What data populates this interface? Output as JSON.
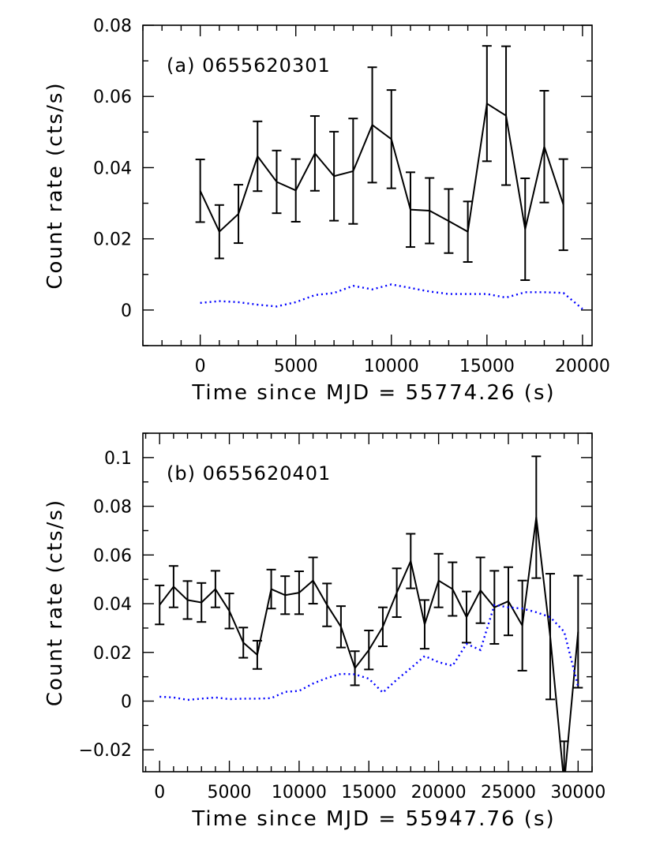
{
  "chart_data": [
    {
      "type": "line",
      "panel_label": "(a) 0655620301",
      "xlabel": "Time since MJD = 55774.26 (s)",
      "ylabel": "Count rate (cts/s)",
      "xlim": [
        -3000,
        20500
      ],
      "ylim": [
        -0.01,
        0.08
      ],
      "xticks": [
        0,
        5000,
        10000,
        15000,
        20000
      ],
      "xtick_labels": [
        "0",
        "5000",
        "10000",
        "15000",
        "20000"
      ],
      "x_minor_step": 1000,
      "yticks": [
        0,
        0.02,
        0.04,
        0.06,
        0.08
      ],
      "ytick_labels": [
        "0",
        "0.02",
        "0.04",
        "0.06",
        "0.08"
      ],
      "y_minor_step": 0.01,
      "series": [
        {
          "style": "solid-with-errorbars",
          "color": "#000000",
          "x": [
            0,
            1000,
            2000,
            3000,
            4000,
            5000,
            6000,
            7000,
            8000,
            9000,
            10000,
            11000,
            12000,
            13000,
            14000,
            15000,
            16000,
            17000,
            18000,
            19000
          ],
          "y": [
            0.0335,
            0.022,
            0.027,
            0.0432,
            0.036,
            0.0336,
            0.044,
            0.0376,
            0.039,
            0.052,
            0.048,
            0.0282,
            0.0279,
            0.025,
            0.022,
            0.058,
            0.0546,
            0.0227,
            0.0459,
            0.0296
          ],
          "err": [
            0.0088,
            0.0075,
            0.0082,
            0.0098,
            0.0088,
            0.0088,
            0.0105,
            0.0125,
            0.0148,
            0.0162,
            0.0138,
            0.0105,
            0.0092,
            0.009,
            0.0085,
            0.0162,
            0.0195,
            0.0143,
            0.0157,
            0.0128
          ]
        },
        {
          "style": "dotted",
          "color": "#0000ff",
          "x": [
            0,
            1000,
            2000,
            3000,
            4000,
            5000,
            6000,
            7000,
            8000,
            9000,
            10000,
            11000,
            12000,
            13000,
            14000,
            15000,
            16000,
            17000,
            18000,
            19000,
            20000
          ],
          "y": [
            0.002,
            0.0025,
            0.0022,
            0.0015,
            0.001,
            0.0022,
            0.0042,
            0.0048,
            0.0068,
            0.0058,
            0.0072,
            0.0062,
            0.0052,
            0.0045,
            0.0045,
            0.0045,
            0.0035,
            0.005,
            0.005,
            0.0048,
            0.0003
          ]
        }
      ]
    },
    {
      "type": "line",
      "panel_label": "(b) 0655620401",
      "xlabel": "Time since MJD = 55947.76 (s)",
      "ylabel": "Count rate (cts/s)",
      "xlim": [
        -1200,
        31000
      ],
      "ylim": [
        -0.029,
        0.11
      ],
      "xticks": [
        0,
        5000,
        10000,
        15000,
        20000,
        25000,
        30000
      ],
      "xtick_labels": [
        "0",
        "5000",
        "10000",
        "15000",
        "20000",
        "25000",
        "30000"
      ],
      "x_minor_step": 1000,
      "yticks": [
        -0.02,
        0,
        0.02,
        0.04,
        0.06,
        0.08,
        0.1
      ],
      "ytick_labels": [
        "−0.02",
        "0",
        "0.02",
        "0.04",
        "0.06",
        "0.08",
        "0.1"
      ],
      "y_minor_step": 0.01,
      "series": [
        {
          "style": "solid-with-errorbars",
          "color": "#000000",
          "x": [
            0,
            1000,
            2000,
            3000,
            4000,
            5000,
            6000,
            7000,
            8000,
            9000,
            10000,
            11000,
            12000,
            13000,
            14000,
            15000,
            16000,
            17000,
            18000,
            19000,
            20000,
            21000,
            22000,
            23000,
            24000,
            25000,
            26000,
            27000,
            28000,
            29000,
            30000
          ],
          "y": [
            0.0395,
            0.047,
            0.0415,
            0.0405,
            0.046,
            0.037,
            0.024,
            0.019,
            0.046,
            0.0435,
            0.0445,
            0.0495,
            0.0395,
            0.0305,
            0.0135,
            0.021,
            0.0305,
            0.0445,
            0.0575,
            0.0315,
            0.0495,
            0.046,
            0.0345,
            0.0455,
            0.0385,
            0.041,
            0.031,
            0.0755,
            0.0265,
            -0.034,
            0.0285
          ],
          "err": [
            0.008,
            0.0085,
            0.0078,
            0.008,
            0.0075,
            0.0072,
            0.0062,
            0.0058,
            0.008,
            0.0078,
            0.0088,
            0.0095,
            0.0088,
            0.0085,
            0.007,
            0.008,
            0.008,
            0.01,
            0.0112,
            0.01,
            0.011,
            0.011,
            0.0105,
            0.0135,
            0.015,
            0.014,
            0.0185,
            0.025,
            0.0258,
            0.0175,
            0.023
          ]
        },
        {
          "style": "dotted",
          "color": "#0000ff",
          "x": [
            0,
            1000,
            2000,
            3000,
            4000,
            5000,
            6000,
            7000,
            8000,
            9000,
            10000,
            11000,
            12000,
            13000,
            14000,
            15000,
            16000,
            17000,
            18000,
            19000,
            20000,
            21000,
            22000,
            23000,
            24000,
            25000,
            26000,
            27000,
            28000,
            29000,
            30000
          ],
          "y": [
            0.0018,
            0.0015,
            0.0005,
            0.001,
            0.0015,
            0.0008,
            0.001,
            0.001,
            0.0012,
            0.0038,
            0.0042,
            0.0072,
            0.0095,
            0.0112,
            0.011,
            0.0092,
            0.0035,
            0.0088,
            0.0135,
            0.0185,
            0.016,
            0.0145,
            0.0235,
            0.021,
            0.0395,
            0.0385,
            0.038,
            0.0365,
            0.0345,
            0.0285,
            0.006
          ]
        }
      ]
    }
  ]
}
